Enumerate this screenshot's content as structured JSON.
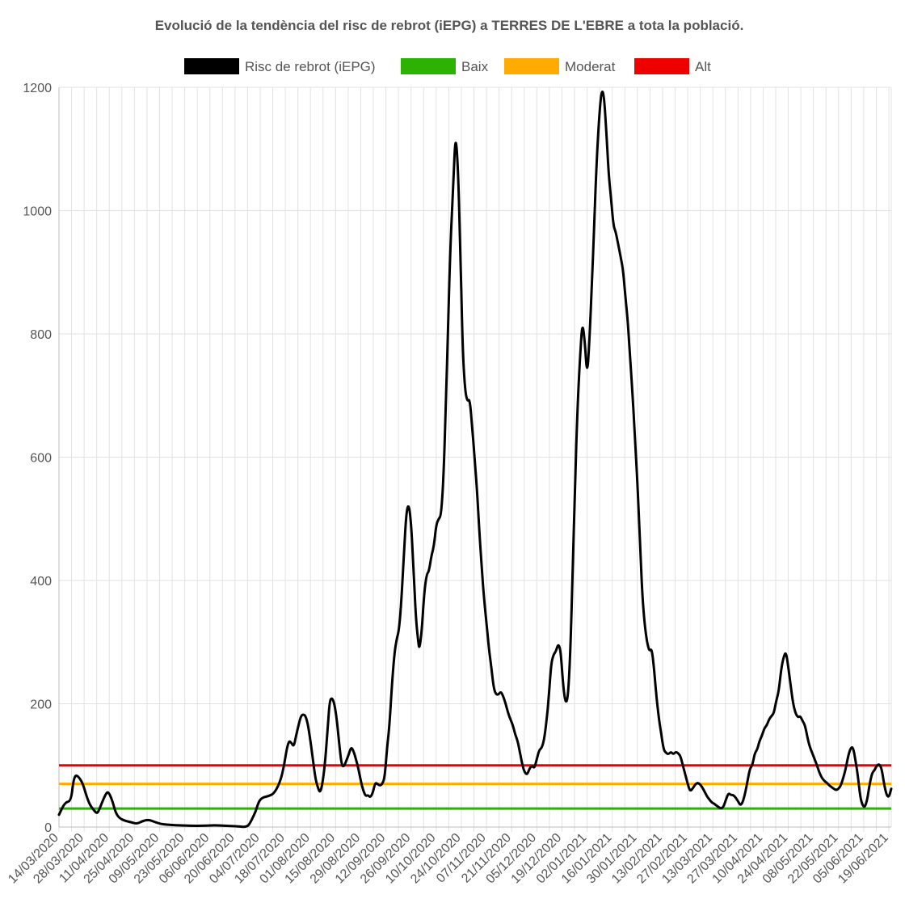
{
  "chart_data": {
    "type": "line",
    "title": "Evolució de la tendència del risc de rebrot (iEPG) a TERRES DE L'EBRE a tota la població.",
    "xlabel": "",
    "ylabel": "",
    "ylim": [
      0,
      1200
    ],
    "y_ticks": [
      0,
      200,
      400,
      600,
      800,
      1000,
      1200
    ],
    "grid": true,
    "legend_position": "top",
    "x_tick_labels": [
      "14/03/2020",
      "28/03/2020",
      "11/04/2020",
      "25/04/2020",
      "09/05/2020",
      "23/05/2020",
      "06/06/2020",
      "20/06/2020",
      "04/07/2020",
      "18/07/2020",
      "01/08/2020",
      "15/08/2020",
      "29/08/2020",
      "12/09/2020",
      "26/09/2020",
      "10/10/2020",
      "24/10/2020",
      "07/11/2020",
      "21/11/2020",
      "05/12/2020",
      "19/12/2020",
      "02/01/2021",
      "16/01/2021",
      "30/01/2021",
      "13/02/2021",
      "27/02/2021",
      "13/03/2021",
      "27/03/2021",
      "10/04/2021",
      "24/04/2021",
      "08/05/2021",
      "22/05/2021",
      "05/06/2021",
      "19/06/2021"
    ],
    "series": [
      {
        "name": "Risc de rebrot (iEPG)",
        "color": "#000000",
        "points": [
          [
            0,
            20
          ],
          [
            5,
            40
          ],
          [
            10,
            42
          ],
          [
            12,
            75
          ],
          [
            14,
            85
          ],
          [
            17,
            80
          ],
          [
            20,
            70
          ],
          [
            23,
            50
          ],
          [
            26,
            35
          ],
          [
            30,
            25
          ],
          [
            32,
            22
          ],
          [
            34,
            30
          ],
          [
            37,
            45
          ],
          [
            40,
            57
          ],
          [
            42,
            55
          ],
          [
            45,
            40
          ],
          [
            47,
            25
          ],
          [
            50,
            15
          ],
          [
            55,
            10
          ],
          [
            60,
            8
          ],
          [
            65,
            5
          ],
          [
            70,
            10
          ],
          [
            75,
            12
          ],
          [
            80,
            8
          ],
          [
            85,
            5
          ],
          [
            90,
            4
          ],
          [
            95,
            3
          ],
          [
            100,
            3
          ],
          [
            110,
            2
          ],
          [
            120,
            2
          ],
          [
            130,
            3
          ],
          [
            140,
            2
          ],
          [
            150,
            1
          ],
          [
            155,
            0
          ],
          [
            158,
            2
          ],
          [
            160,
            8
          ],
          [
            163,
            20
          ],
          [
            165,
            30
          ],
          [
            167,
            42
          ],
          [
            170,
            48
          ],
          [
            175,
            50
          ],
          [
            180,
            55
          ],
          [
            185,
            75
          ],
          [
            188,
            100
          ],
          [
            190,
            125
          ],
          [
            192,
            140
          ],
          [
            194,
            137
          ],
          [
            196,
            130
          ],
          [
            198,
            148
          ],
          [
            200,
            165
          ],
          [
            202,
            180
          ],
          [
            204,
            183
          ],
          [
            206,
            180
          ],
          [
            208,
            165
          ],
          [
            210,
            140
          ],
          [
            212,
            110
          ],
          [
            214,
            80
          ],
          [
            216,
            65
          ],
          [
            218,
            55
          ],
          [
            220,
            70
          ],
          [
            222,
            100
          ],
          [
            224,
            150
          ],
          [
            226,
            205
          ],
          [
            228,
            210
          ],
          [
            230,
            200
          ],
          [
            232,
            175
          ],
          [
            234,
            135
          ],
          [
            236,
            100
          ],
          [
            238,
            98
          ],
          [
            240,
            108
          ],
          [
            242,
            118
          ],
          [
            244,
            130
          ],
          [
            246,
            123
          ],
          [
            248,
            110
          ],
          [
            250,
            95
          ],
          [
            252,
            75
          ],
          [
            254,
            60
          ],
          [
            256,
            50
          ],
          [
            258,
            52
          ],
          [
            260,
            48
          ],
          [
            262,
            55
          ],
          [
            264,
            72
          ],
          [
            266,
            70
          ],
          [
            268,
            67
          ],
          [
            270,
            70
          ],
          [
            272,
            80
          ],
          [
            274,
            130
          ],
          [
            276,
            165
          ],
          [
            278,
            230
          ],
          [
            280,
            280
          ],
          [
            282,
            305
          ],
          [
            284,
            320
          ],
          [
            286,
            370
          ],
          [
            288,
            440
          ],
          [
            290,
            510
          ],
          [
            292,
            525
          ],
          [
            294,
            495
          ],
          [
            296,
            420
          ],
          [
            298,
            340
          ],
          [
            300,
            300
          ],
          [
            301,
            288
          ],
          [
            303,
            320
          ],
          [
            305,
            380
          ],
          [
            307,
            410
          ],
          [
            309,
            415
          ],
          [
            311,
            440
          ],
          [
            313,
            455
          ],
          [
            315,
            490
          ],
          [
            317,
            500
          ],
          [
            319,
            505
          ],
          [
            321,
            560
          ],
          [
            323,
            680
          ],
          [
            325,
            820
          ],
          [
            327,
            950
          ],
          [
            329,
            1030
          ],
          [
            331,
            1125
          ],
          [
            333,
            1080
          ],
          [
            335,
            950
          ],
          [
            337,
            780
          ],
          [
            339,
            710
          ],
          [
            341,
            690
          ],
          [
            343,
            695
          ],
          [
            345,
            650
          ],
          [
            347,
            600
          ],
          [
            349,
            550
          ],
          [
            351,
            480
          ],
          [
            353,
            420
          ],
          [
            355,
            370
          ],
          [
            357,
            330
          ],
          [
            359,
            290
          ],
          [
            361,
            260
          ],
          [
            363,
            225
          ],
          [
            365,
            215
          ],
          [
            367,
            215
          ],
          [
            369,
            220
          ],
          [
            371,
            212
          ],
          [
            373,
            200
          ],
          [
            375,
            185
          ],
          [
            377,
            175
          ],
          [
            379,
            165
          ],
          [
            381,
            150
          ],
          [
            383,
            140
          ],
          [
            385,
            120
          ],
          [
            387,
            100
          ],
          [
            389,
            88
          ],
          [
            391,
            85
          ],
          [
            393,
            95
          ],
          [
            395,
            100
          ],
          [
            397,
            95
          ],
          [
            399,
            110
          ],
          [
            401,
            125
          ],
          [
            403,
            128
          ],
          [
            405,
            140
          ],
          [
            407,
            170
          ],
          [
            409,
            210
          ],
          [
            411,
            265
          ],
          [
            413,
            280
          ],
          [
            415,
            285
          ],
          [
            417,
            298
          ],
          [
            419,
            285
          ],
          [
            421,
            230
          ],
          [
            423,
            200
          ],
          [
            425,
            210
          ],
          [
            427,
            280
          ],
          [
            429,
            420
          ],
          [
            431,
            560
          ],
          [
            433,
            680
          ],
          [
            435,
            760
          ],
          [
            437,
            820
          ],
          [
            439,
            790
          ],
          [
            441,
            730
          ],
          [
            443,
            790
          ],
          [
            445,
            880
          ],
          [
            447,
            980
          ],
          [
            449,
            1080
          ],
          [
            451,
            1150
          ],
          [
            453,
            1195
          ],
          [
            455,
            1190
          ],
          [
            457,
            1130
          ],
          [
            459,
            1060
          ],
          [
            461,
            1020
          ],
          [
            463,
            975
          ],
          [
            465,
            965
          ],
          [
            467,
            945
          ],
          [
            469,
            925
          ],
          [
            471,
            905
          ],
          [
            473,
            860
          ],
          [
            475,
            820
          ],
          [
            477,
            760
          ],
          [
            479,
            700
          ],
          [
            481,
            630
          ],
          [
            483,
            560
          ],
          [
            485,
            470
          ],
          [
            487,
            380
          ],
          [
            489,
            330
          ],
          [
            491,
            300
          ],
          [
            493,
            285
          ],
          [
            495,
            290
          ],
          [
            497,
            255
          ],
          [
            499,
            210
          ],
          [
            501,
            175
          ],
          [
            503,
            150
          ],
          [
            505,
            125
          ],
          [
            507,
            120
          ],
          [
            509,
            118
          ],
          [
            511,
            122
          ],
          [
            513,
            118
          ],
          [
            515,
            122
          ],
          [
            517,
            120
          ],
          [
            519,
            115
          ],
          [
            521,
            100
          ],
          [
            523,
            85
          ],
          [
            525,
            70
          ],
          [
            527,
            58
          ],
          [
            529,
            62
          ],
          [
            531,
            68
          ],
          [
            533,
            72
          ],
          [
            535,
            70
          ],
          [
            537,
            65
          ],
          [
            539,
            58
          ],
          [
            541,
            50
          ],
          [
            543,
            45
          ],
          [
            545,
            40
          ],
          [
            547,
            38
          ],
          [
            549,
            35
          ],
          [
            551,
            32
          ],
          [
            553,
            30
          ],
          [
            555,
            33
          ],
          [
            557,
            45
          ],
          [
            559,
            55
          ],
          [
            561,
            52
          ],
          [
            563,
            52
          ],
          [
            565,
            48
          ],
          [
            567,
            42
          ],
          [
            569,
            35
          ],
          [
            571,
            40
          ],
          [
            573,
            55
          ],
          [
            575,
            75
          ],
          [
            577,
            95
          ],
          [
            579,
            100
          ],
          [
            581,
            120
          ],
          [
            583,
            125
          ],
          [
            585,
            140
          ],
          [
            587,
            148
          ],
          [
            589,
            160
          ],
          [
            591,
            165
          ],
          [
            593,
            175
          ],
          [
            595,
            180
          ],
          [
            597,
            185
          ],
          [
            599,
            205
          ],
          [
            601,
            220
          ],
          [
            603,
            255
          ],
          [
            605,
            275
          ],
          [
            607,
            285
          ],
          [
            609,
            260
          ],
          [
            611,
            230
          ],
          [
            613,
            200
          ],
          [
            615,
            185
          ],
          [
            617,
            178
          ],
          [
            619,
            180
          ],
          [
            621,
            172
          ],
          [
            623,
            165
          ],
          [
            625,
            145
          ],
          [
            627,
            130
          ],
          [
            629,
            120
          ],
          [
            631,
            110
          ],
          [
            633,
            100
          ],
          [
            635,
            88
          ],
          [
            637,
            80
          ],
          [
            639,
            75
          ],
          [
            641,
            72
          ],
          [
            643,
            68
          ],
          [
            645,
            65
          ],
          [
            647,
            62
          ],
          [
            649,
            60
          ],
          [
            651,
            62
          ],
          [
            653,
            68
          ],
          [
            655,
            80
          ],
          [
            657,
            95
          ],
          [
            659,
            115
          ],
          [
            661,
            128
          ],
          [
            663,
            130
          ],
          [
            665,
            110
          ],
          [
            667,
            85
          ],
          [
            669,
            50
          ],
          [
            671,
            35
          ],
          [
            673,
            32
          ],
          [
            675,
            45
          ],
          [
            677,
            70
          ],
          [
            679,
            88
          ],
          [
            681,
            92
          ],
          [
            683,
            100
          ],
          [
            685,
            102
          ],
          [
            687,
            95
          ],
          [
            689,
            70
          ],
          [
            691,
            52
          ],
          [
            693,
            48
          ],
          [
            695,
            62
          ]
        ]
      }
    ],
    "reference_lines": [
      {
        "name": "Baix",
        "value": 30,
        "color": "#2bb202"
      },
      {
        "name": "Moderat",
        "value": 70,
        "color": "#ffab00"
      },
      {
        "name": "Alt",
        "value": 100,
        "color": "#ee0000"
      }
    ],
    "x_range": [
      0,
      695
    ]
  }
}
